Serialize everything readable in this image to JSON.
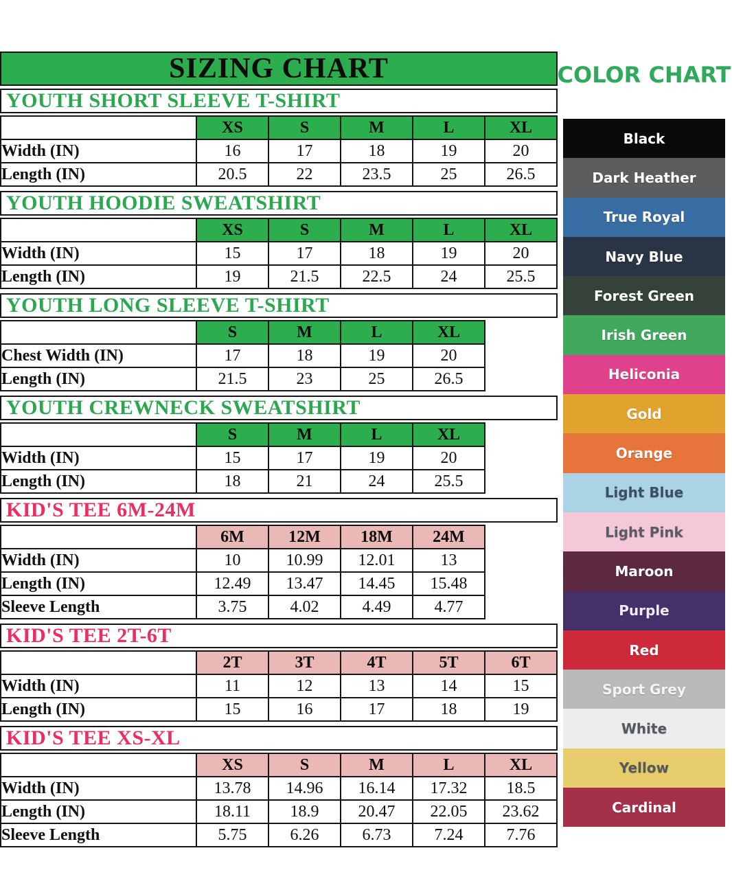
{
  "sizing_chart": {
    "title": "SIZING CHART"
  },
  "chart_data": [
    {
      "type": "table",
      "title": "YOUTH SHORT SLEEVE T-SHIRT",
      "theme": "green",
      "sizes": [
        "XS",
        "S",
        "M",
        "L",
        "XL"
      ],
      "rows": [
        {
          "label": "Width (IN)",
          "values": [
            "16",
            "17",
            "18",
            "19",
            "20"
          ]
        },
        {
          "label": "Length (IN)",
          "values": [
            "20.5",
            "22",
            "23.5",
            "25",
            "26.5"
          ]
        }
      ]
    },
    {
      "type": "table",
      "title": "YOUTH HOODIE SWEATSHIRT",
      "theme": "green",
      "sizes": [
        "XS",
        "S",
        "M",
        "L",
        "XL"
      ],
      "rows": [
        {
          "label": "Width (IN)",
          "values": [
            "15",
            "17",
            "18",
            "19",
            "20"
          ]
        },
        {
          "label": "Length (IN)",
          "values": [
            "19",
            "21.5",
            "22.5",
            "24",
            "25.5"
          ]
        }
      ]
    },
    {
      "type": "table",
      "title": "YOUTH LONG SLEEVE T-SHIRT",
      "theme": "green",
      "sizes": [
        "S",
        "M",
        "L",
        "XL"
      ],
      "rows": [
        {
          "label": "Chest Width (IN)",
          "values": [
            "17",
            "18",
            "19",
            "20"
          ]
        },
        {
          "label": "Length (IN)",
          "values": [
            "21.5",
            "23",
            "25",
            "26.5"
          ]
        }
      ]
    },
    {
      "type": "table",
      "title": "YOUTH CREWNECK SWEATSHIRT",
      "theme": "green",
      "sizes": [
        "S",
        "M",
        "L",
        "XL"
      ],
      "rows": [
        {
          "label": "Width (IN)",
          "values": [
            "15",
            "17",
            "19",
            "20"
          ]
        },
        {
          "label": "Length (IN)",
          "values": [
            "18",
            "21",
            "24",
            "25.5"
          ]
        }
      ]
    },
    {
      "type": "table",
      "title": "KID'S TEE 6M-24M",
      "theme": "pink",
      "sizes": [
        "6M",
        "12M",
        "18M",
        "24M"
      ],
      "rows": [
        {
          "label": "Width (IN)",
          "values": [
            "10",
            "10.99",
            "12.01",
            "13"
          ]
        },
        {
          "label": "Length (IN)",
          "values": [
            "12.49",
            "13.47",
            "14.45",
            "15.48"
          ]
        },
        {
          "label": "Sleeve Length",
          "values": [
            "3.75",
            "4.02",
            "4.49",
            "4.77"
          ]
        }
      ]
    },
    {
      "type": "table",
      "title": "KID'S TEE 2T-6T",
      "theme": "pink",
      "sizes": [
        "2T",
        "3T",
        "4T",
        "5T",
        "6T"
      ],
      "rows": [
        {
          "label": "Width (IN)",
          "values": [
            "11",
            "12",
            "13",
            "14",
            "15"
          ]
        },
        {
          "label": "Length (IN)",
          "values": [
            "15",
            "16",
            "17",
            "18",
            "19"
          ]
        }
      ]
    },
    {
      "type": "table",
      "title": "KID'S TEE XS-XL",
      "theme": "pink",
      "sizes": [
        "XS",
        "S",
        "M",
        "L",
        "XL"
      ],
      "rows": [
        {
          "label": "Width (IN)",
          "values": [
            "13.78",
            "14.96",
            "16.14",
            "17.32",
            "18.5"
          ]
        },
        {
          "label": "Length (IN)",
          "values": [
            "18.11",
            "18.9",
            "20.47",
            "22.05",
            "23.62"
          ]
        },
        {
          "label": "Sleeve Length",
          "values": [
            "5.75",
            "6.26",
            "6.73",
            "7.24",
            "7.76"
          ]
        }
      ]
    }
  ],
  "color_chart": {
    "title": "COLOR CHART",
    "title_color": "#2FA95C",
    "colors": [
      {
        "name": "Black",
        "bg": "#0A0A0A",
        "text_color": "#FFFFFF"
      },
      {
        "name": "Dark Heather",
        "bg": "#5B5D5F",
        "text_color": "#FFFFFF"
      },
      {
        "name": "True Royal",
        "bg": "#386DA4",
        "text_color": "#FFFFFF"
      },
      {
        "name": "Navy Blue",
        "bg": "#2A3447",
        "text_color": "#FFFFFF"
      },
      {
        "name": "Forest Green",
        "bg": "#35423A",
        "text_color": "#FFFFFF"
      },
      {
        "name": "Irish Green",
        "bg": "#41A95E",
        "text_color": "#FFFFFF"
      },
      {
        "name": "Heliconia",
        "bg": "#E0418C",
        "text_color": "#FFFFFF"
      },
      {
        "name": "Gold",
        "bg": "#E2A32E",
        "text_color": "#FFFFFF"
      },
      {
        "name": "Orange",
        "bg": "#E6743B",
        "text_color": "#FFFFFF"
      },
      {
        "name": "Light Blue",
        "bg": "#ABD3E6",
        "text_color": "#3E4F61"
      },
      {
        "name": "Light Pink",
        "bg": "#F3C9DA",
        "text_color": "#5B5B66"
      },
      {
        "name": "Maroon",
        "bg": "#5C2940",
        "text_color": "#FFFFFF"
      },
      {
        "name": "Purple",
        "bg": "#453069",
        "text_color": "#EFEAF6"
      },
      {
        "name": "Red",
        "bg": "#CE2939",
        "text_color": "#FFFFFF"
      },
      {
        "name": "Sport Grey",
        "bg": "#B9BABC",
        "text_color": "#F4F4F4"
      },
      {
        "name": "White",
        "bg": "#ECEDEE",
        "text_color": "#55585C"
      },
      {
        "name": "Yellow",
        "bg": "#E7CD6B",
        "text_color": "#56585B"
      },
      {
        "name": "Cardinal",
        "bg": "#A43049",
        "text_color": "#FFFFFF"
      }
    ]
  },
  "theme": {
    "green": "#2DAE4E",
    "green_text": "#2BA84F",
    "pink_cell": "#EBB9B5",
    "pink_text": "#EC2D62",
    "border": "#151515"
  }
}
